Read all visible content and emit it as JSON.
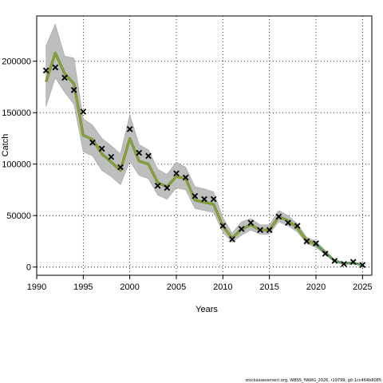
{
  "chart_data": {
    "type": "line",
    "xlabel": "Years",
    "ylabel": "Catch",
    "xlim": [
      1990,
      2026
    ],
    "ylim": [
      -8000,
      244000
    ],
    "xticks": [
      1990,
      1995,
      2000,
      2005,
      2010,
      2015,
      2020,
      2025
    ],
    "yticks": [
      0,
      50000,
      100000,
      150000,
      200000
    ],
    "grid": true,
    "colors": {
      "band": "#bebebe",
      "band_edge": "#a0a0a0",
      "line_main": "#8fa83a",
      "line_dark": "#6b8a2a",
      "line_teal": "#4a9a8a",
      "marker": "#000000",
      "grid": "#000000"
    },
    "years": [
      1991,
      1992,
      1993,
      1994,
      1995,
      1996,
      1997,
      1998,
      1999,
      2000,
      2001,
      2002,
      2003,
      2004,
      2005,
      2006,
      2007,
      2008,
      2009,
      2010,
      2011,
      2012,
      2013,
      2014,
      2015,
      2016,
      2017,
      2018,
      2019,
      2020,
      2021,
      2022,
      2023,
      2024,
      2025
    ],
    "series": [
      {
        "type": "line",
        "values": [
          180000,
          208000,
          188000,
          178000,
          128000,
          124000,
          110000,
          102000,
          94000,
          125000,
          103000,
          100000,
          82000,
          78000,
          88000,
          86000,
          65000,
          63000,
          61000,
          40000,
          28000,
          37000,
          41000,
          36000,
          36000,
          49000,
          45000,
          38000,
          26000,
          22000,
          14000,
          6000,
          3500,
          4000,
          2000
        ]
      },
      {
        "type": "band",
        "upper": [
          215000,
          236000,
          205000,
          203000,
          144000,
          138000,
          125000,
          118000,
          110000,
          148000,
          119000,
          114000,
          95000,
          90000,
          102000,
          97000,
          78000,
          76000,
          73000,
          48000,
          33000,
          44000,
          47000,
          41000,
          41000,
          55000,
          50000,
          42000,
          29000,
          25000,
          16000,
          7000,
          4500,
          5000,
          2500
        ],
        "lower": [
          156000,
          184000,
          170000,
          158000,
          112000,
          108000,
          94000,
          88000,
          80000,
          103000,
          89000,
          86000,
          70000,
          66000,
          77000,
          75000,
          57000,
          55000,
          53000,
          34000,
          24000,
          31000,
          36000,
          32000,
          32000,
          44000,
          40000,
          34000,
          23000,
          19000,
          12000,
          5000,
          2800,
          3200,
          1600
        ]
      },
      {
        "type": "scatter",
        "marker": "x",
        "values": [
          191000,
          194000,
          184000,
          172000,
          151000,
          121000,
          115000,
          107000,
          97000,
          134000,
          111000,
          108000,
          79000,
          77000,
          91000,
          87000,
          69000,
          66000,
          66000,
          40000,
          27000,
          37000,
          43000,
          36000,
          36000,
          49000,
          43000,
          40000,
          25000,
          23000,
          13000,
          6000,
          3000,
          5000,
          2000
        ]
      }
    ]
  },
  "footer": "stockassessment.org, WBSS_HAWG_2026, r19799, git:1cc464b8085"
}
